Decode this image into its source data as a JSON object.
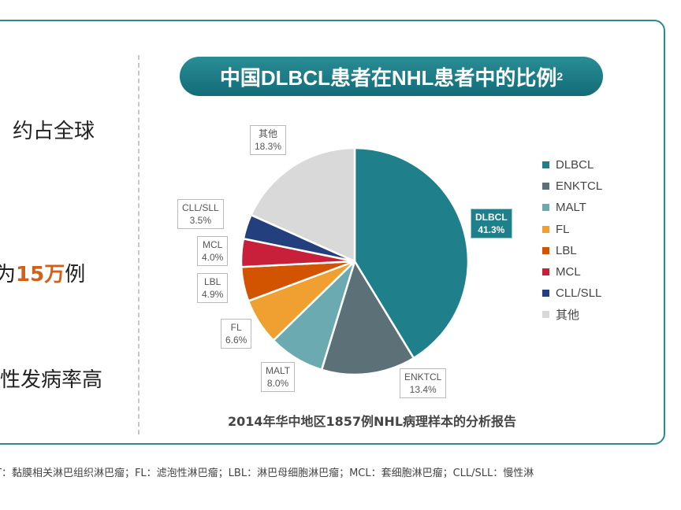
{
  "left": {
    "line1": "约占全球",
    "line2_pre": "为",
    "line2_hl": "15万",
    "line2_post": "例",
    "line3": "性发病率高"
  },
  "chart_data": {
    "type": "pie",
    "title": "中国DLBCL患者在NHL患者中的比例",
    "title_sup": "2",
    "source": "2014年华中地区1857例NHL病理样本的分析报告",
    "slices": [
      {
        "name": "DLBCL",
        "value": 41.3,
        "label": "41.3%",
        "color": "#1f7f8a"
      },
      {
        "name": "ENKTCL",
        "value": 13.4,
        "label": "13.4%",
        "color": "#5b7177"
      },
      {
        "name": "MALT",
        "value": 8.0,
        "label": "8.0%",
        "color": "#6aaab0"
      },
      {
        "name": "FL",
        "value": 6.6,
        "label": "6.6%",
        "color": "#f0a030"
      },
      {
        "name": "LBL",
        "value": 4.9,
        "label": "4.9%",
        "color": "#d35400"
      },
      {
        "name": "MCL",
        "value": 4.0,
        "label": "4.0%",
        "color": "#c8203a"
      },
      {
        "name": "CLL/SLL",
        "value": 3.5,
        "label": "3.5%",
        "color": "#233f7e"
      },
      {
        "name": "其他",
        "value": 18.3,
        "label": "18.3%",
        "color": "#d9d9d9"
      }
    ],
    "legend_placement": "right"
  },
  "footnote": "T：黏膜相关淋巴组织淋巴瘤；FL：滤泡性淋巴瘤；LBL：淋巴母细胞淋巴瘤；MCL：套细胞淋巴瘤；CLL/SLL：慢性淋"
}
